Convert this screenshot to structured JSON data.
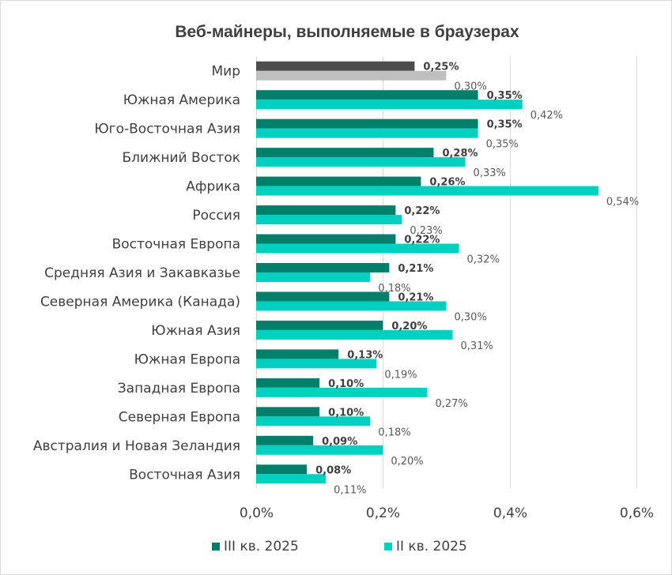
{
  "chart_data": {
    "type": "bar",
    "orientation": "horizontal",
    "title": "Веб-майнеры, выполняемые в браузерах",
    "categories": [
      "Мир",
      "Южная Америка",
      "Юго-Восточная Азия",
      "Ближний Восток",
      "Африка",
      "Россия",
      "Восточная Европа",
      "Средняя Азия и Закавказье",
      "Северная Америка (Канада)",
      "Южная Азия",
      "Южная Европа",
      "Западная Европа",
      "Северная Европа",
      "Австралия и Новая Зеландия",
      "Восточная Азия"
    ],
    "series": [
      {
        "name": "III кв. 2025",
        "values": [
          0.25,
          0.35,
          0.35,
          0.28,
          0.26,
          0.22,
          0.22,
          0.21,
          0.21,
          0.2,
          0.13,
          0.1,
          0.1,
          0.09,
          0.08
        ],
        "labels": [
          "0,25%",
          "0,35%",
          "0,35%",
          "0,28%",
          "0,26%",
          "0,22%",
          "0,22%",
          "0,21%",
          "0,21%",
          "0,20%",
          "0,13%",
          "0,10%",
          "0,10%",
          "0,09%",
          "0,08%"
        ],
        "color": "#00806a",
        "highlight_color": "#4d4d4d"
      },
      {
        "name": "II кв. 2025",
        "values": [
          0.3,
          0.42,
          0.35,
          0.33,
          0.54,
          0.23,
          0.32,
          0.18,
          0.3,
          0.31,
          0.19,
          0.27,
          0.18,
          0.2,
          0.11
        ],
        "labels": [
          "0,30%",
          "0,42%",
          "0,35%",
          "0,33%",
          "0,54%",
          "0,23%",
          "0,32%",
          "0,18%",
          "0,30%",
          "0,31%",
          "0,19%",
          "0,27%",
          "0,18%",
          "0,20%",
          "0,11%"
        ],
        "color": "#00d0c0",
        "highlight_color": "#bfbfbf"
      }
    ],
    "x_ticks": [
      "0,0%",
      "0,2%",
      "0,4%",
      "0,6%"
    ],
    "x_tick_values": [
      0,
      0.2,
      0.4,
      0.6
    ],
    "xlim": [
      0,
      0.6
    ],
    "grid": true,
    "legend_position": "bottom",
    "xlabel": "",
    "ylabel": ""
  }
}
